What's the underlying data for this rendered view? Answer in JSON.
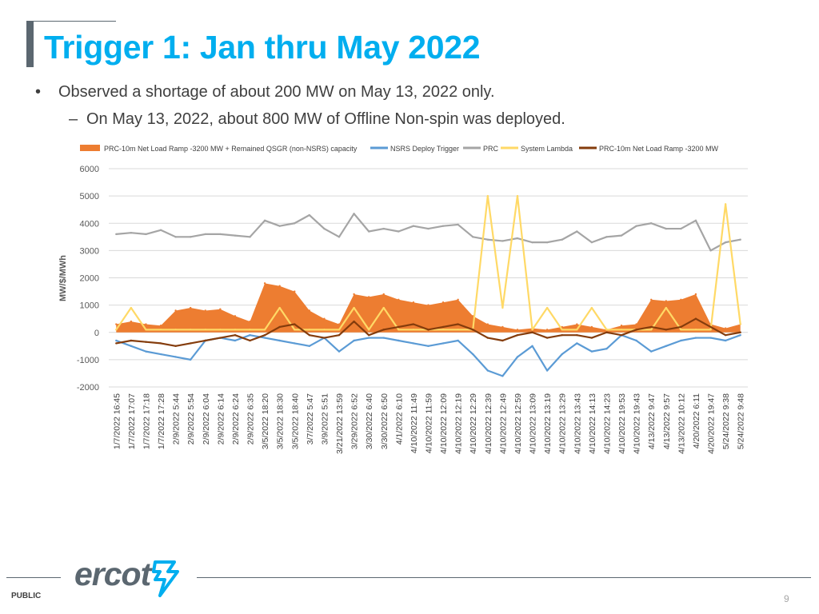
{
  "slide": {
    "title": "Trigger 1: Jan thru May 2022",
    "bullet1_marker": "•",
    "bullet1": "Observed a shortage of about 200 MW on May 13, 2022 only.",
    "bullet2_marker": "–",
    "bullet2": "On May 13, 2022, about 800 MW of Offline Non-spin was deployed.",
    "footer_label": "PUBLIC",
    "page_number": "9",
    "logo_text": "ercot",
    "colors": {
      "title": "#00aeef",
      "accent": "#5b6770"
    }
  },
  "chart_data": {
    "type": "line",
    "ylabel": "MW/$/MWh",
    "xlabel": "",
    "ylim": [
      -2000,
      6000
    ],
    "yticks": [
      -2000,
      -1000,
      0,
      1000,
      2000,
      3000,
      4000,
      5000,
      6000
    ],
    "grid": true,
    "legend_position": "top",
    "categories": [
      "1/7/2022 16:45",
      "1/7/2022 17:07",
      "1/7/2022 17:18",
      "1/7/2022 17:28",
      "2/9/2022 5:44",
      "2/9/2022 5:54",
      "2/9/2022 6:04",
      "2/9/2022 6:14",
      "2/9/2022 6:24",
      "2/9/2022 6:35",
      "3/5/2022 18:20",
      "3/5/2022 18:30",
      "3/5/2022 18:40",
      "3/7/2022 5:47",
      "3/9/2022 5:51",
      "3/21/2022 13:59",
      "3/29/2022 6:52",
      "3/30/2022 6:40",
      "3/30/2022 6:50",
      "4/1/2022 6:10",
      "4/10/2022 11:49",
      "4/10/2022 11:59",
      "4/10/2022 12:09",
      "4/10/2022 12:19",
      "4/10/2022 12:29",
      "4/10/2022 12:39",
      "4/10/2022 12:49",
      "4/10/2022 12:59",
      "4/10/2022 13:09",
      "4/10/2022 13:19",
      "4/10/2022 13:29",
      "4/10/2022 13:43",
      "4/10/2022 14:13",
      "4/10/2022 14:23",
      "4/10/2022 19:53",
      "4/10/2022 19:43",
      "4/13/2022 9:47",
      "4/13/2022 9:57",
      "4/13/2022 10:12",
      "4/20/2022 6:11",
      "4/20/2022 19:47",
      "5/24/2022 9:38",
      "5/24/2022 9:48"
    ],
    "series": [
      {
        "name": "PRC-10m Net Load Ramp -3200 MW + Remained QSGR (non-NSRS) capacity",
        "kind": "area",
        "color": "#ed7d31",
        "values": [
          300,
          400,
          300,
          250,
          800,
          900,
          800,
          850,
          600,
          400,
          1800,
          1700,
          1500,
          800,
          500,
          300,
          1400,
          1300,
          1400,
          1200,
          1100,
          1000,
          1100,
          1200,
          600,
          300,
          200,
          100,
          150,
          100,
          200,
          300,
          200,
          100,
          250,
          300,
          1200,
          1150,
          1200,
          1400,
          300,
          150,
          300
        ]
      },
      {
        "name": "NSRS Deploy Trigger",
        "kind": "line",
        "color": "#5b9bd5",
        "values": [
          -300,
          -500,
          -700,
          -800,
          -900,
          -1000,
          -300,
          -200,
          -300,
          -100,
          -200,
          -300,
          -400,
          -500,
          -200,
          -700,
          -300,
          -200,
          -200,
          -300,
          -400,
          -500,
          -400,
          -300,
          -800,
          -1400,
          -1600,
          -900,
          -500,
          -1400,
          -800,
          -400,
          -700,
          -600,
          -100,
          -300,
          -700,
          -500,
          -300,
          -200,
          -200,
          -300,
          -100
        ]
      },
      {
        "name": "PRC",
        "kind": "line",
        "color": "#a5a5a5",
        "values": [
          3600,
          3650,
          3600,
          3750,
          3500,
          3500,
          3600,
          3600,
          3550,
          3500,
          4100,
          3900,
          4000,
          4300,
          3800,
          3500,
          4350,
          3700,
          3800,
          3700,
          3900,
          3800,
          3900,
          3950,
          3500,
          3400,
          3350,
          3450,
          3300,
          3300,
          3400,
          3700,
          3300,
          3500,
          3550,
          3900,
          4000,
          3800,
          3800,
          4100,
          3000,
          3300,
          3400
        ]
      },
      {
        "name": "System Lambda",
        "kind": "line",
        "color": "#ffd966",
        "values": [
          100,
          900,
          100,
          100,
          100,
          100,
          100,
          100,
          100,
          100,
          100,
          900,
          100,
          100,
          100,
          100,
          900,
          100,
          900,
          100,
          100,
          100,
          100,
          100,
          100,
          5000,
          900,
          5000,
          100,
          900,
          100,
          100,
          900,
          100,
          100,
          100,
          100,
          900,
          100,
          100,
          100,
          4700,
          300
        ]
      },
      {
        "name": "PRC-10m Net Load Ramp -3200 MW",
        "kind": "line",
        "color": "#843c0c",
        "values": [
          -400,
          -300,
          -350,
          -400,
          -500,
          -400,
          -300,
          -200,
          -100,
          -300,
          -100,
          200,
          300,
          -100,
          -200,
          -100,
          400,
          -100,
          100,
          200,
          300,
          100,
          200,
          300,
          100,
          -200,
          -300,
          -100,
          0,
          -200,
          -100,
          -100,
          -200,
          0,
          -100,
          100,
          200,
          100,
          200,
          500,
          200,
          -100,
          0
        ]
      }
    ]
  }
}
